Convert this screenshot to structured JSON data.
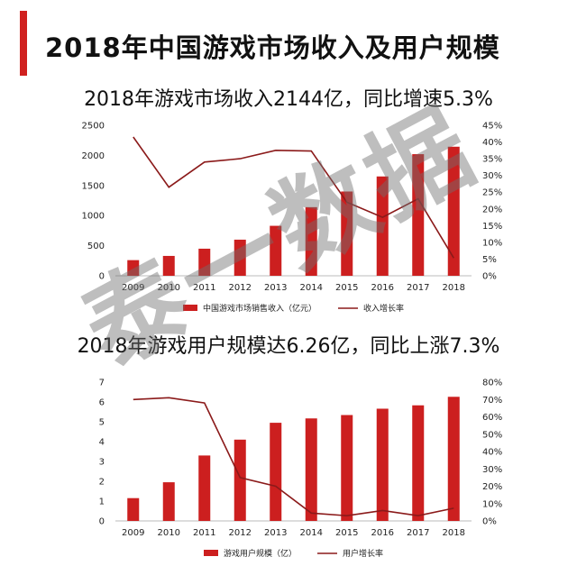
{
  "page_title": "2018年中国游戏市场收入及用户规模",
  "watermark": "泰一数据",
  "colors": {
    "accent": "#d0211f",
    "bar": "#cc1f1f",
    "line": "#8b1a1a"
  },
  "chart_data": [
    {
      "type": "bar",
      "title": "2018年游戏市场收入2144亿，同比增速5.3%",
      "categories": [
        "2009",
        "2010",
        "2011",
        "2012",
        "2013",
        "2014",
        "2015",
        "2016",
        "2017",
        "2018"
      ],
      "series": [
        {
          "name": "中国游戏市场销售收入（亿元）",
          "type": "bar",
          "axis": "left",
          "values": [
            260,
            330,
            450,
            600,
            830,
            1140,
            1400,
            1650,
            2020,
            2144
          ]
        },
        {
          "name": "收入增长率",
          "type": "line",
          "axis": "right",
          "values": [
            41.5,
            26.5,
            34,
            35,
            37.5,
            37.3,
            22,
            17.5,
            23,
            5.3
          ]
        }
      ],
      "ylim_left": [
        0,
        2500
      ],
      "yticks_left": [
        "0",
        "500",
        "1000",
        "1500",
        "2000",
        "2500"
      ],
      "ylim_right": [
        0,
        45
      ],
      "yticks_right": [
        "0%",
        "5%",
        "10%",
        "15%",
        "20%",
        "25%",
        "30%",
        "35%",
        "40%",
        "45%"
      ],
      "grid": false,
      "legend_position": "bottom"
    },
    {
      "type": "bar",
      "title": "2018年游戏用户规模达6.26亿，同比上涨7.3%",
      "categories": [
        "2009",
        "2010",
        "2011",
        "2012",
        "2013",
        "2014",
        "2015",
        "2016",
        "2017",
        "2018"
      ],
      "series": [
        {
          "name": "游戏用户规模（亿）",
          "type": "bar",
          "axis": "left",
          "values": [
            1.15,
            1.95,
            3.3,
            4.1,
            4.95,
            5.17,
            5.34,
            5.66,
            5.83,
            6.26
          ]
        },
        {
          "name": "用户增长率",
          "type": "line",
          "axis": "right",
          "values": [
            70,
            71,
            68,
            25,
            20,
            4.5,
            3,
            6,
            3,
            7.3
          ]
        }
      ],
      "ylim_left": [
        0,
        7
      ],
      "yticks_left": [
        "0",
        "1",
        "2",
        "3",
        "4",
        "5",
        "6",
        "7"
      ],
      "ylim_right": [
        0,
        80
      ],
      "yticks_right": [
        "0%",
        "10%",
        "20%",
        "30%",
        "40%",
        "50%",
        "60%",
        "70%",
        "80%"
      ],
      "grid": false,
      "legend_position": "bottom"
    }
  ]
}
